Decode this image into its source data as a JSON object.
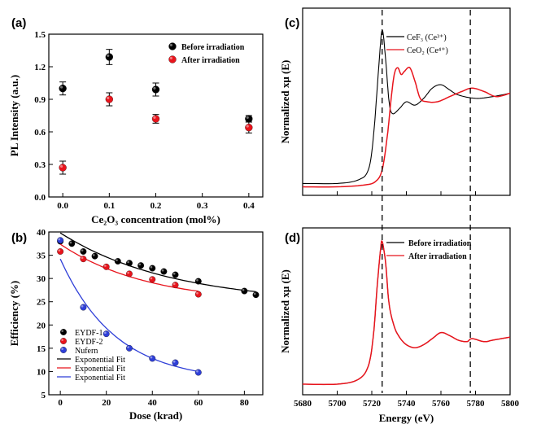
{
  "chart_data": [
    {
      "panel": "(a)",
      "type": "scatter",
      "xlabel": "Ce₂O₃ concentration (mol%)",
      "ylabel": "PL Intensity (a.u.)",
      "xlim": [
        -0.03,
        0.43
      ],
      "ylim": [
        0.0,
        1.5
      ],
      "xticks": [
        "0.0",
        "0.1",
        "0.2",
        "0.3",
        "0.4"
      ],
      "yticks": [
        "0.0",
        "0.3",
        "0.6",
        "0.9",
        "1.2",
        "1.5"
      ],
      "legend_position": "top-right",
      "series": [
        {
          "name": "Before irradiation",
          "color": "#000000",
          "x": [
            0,
            0.1,
            0.2,
            0.4
          ],
          "y": [
            1.0,
            1.29,
            0.99,
            0.72
          ],
          "err": [
            0.06,
            0.07,
            0.06,
            0.03
          ]
        },
        {
          "name": "After irradiation",
          "color": "#e8141c",
          "x": [
            0,
            0.1,
            0.2,
            0.4
          ],
          "y": [
            0.27,
            0.9,
            0.72,
            0.64
          ],
          "err": [
            0.06,
            0.06,
            0.04,
            0.05
          ]
        }
      ]
    },
    {
      "panel": "(b)",
      "type": "scatter",
      "xlabel": "Dose (krad)",
      "ylabel": "Efficiency (%)",
      "xlim": [
        -5,
        88
      ],
      "ylim": [
        5,
        40
      ],
      "xticks": [
        "0",
        "20",
        "40",
        "60",
        "80"
      ],
      "yticks": [
        "5",
        "10",
        "15",
        "20",
        "25",
        "30",
        "35",
        "40"
      ],
      "legend_position": "bottom-left",
      "series": [
        {
          "name": "EYDF-1",
          "color": "#000000",
          "x": [
            0,
            5,
            10,
            15,
            25,
            30,
            35,
            40,
            45,
            50,
            60,
            80,
            85
          ],
          "y": [
            38,
            37.5,
            35.8,
            34.8,
            33.7,
            33.3,
            32.8,
            32.2,
            31.5,
            30.8,
            29.4,
            27.3,
            26.5
          ]
        },
        {
          "name": "EYDF-2",
          "color": "#e8141c",
          "x": [
            0,
            10,
            20,
            30,
            40,
            50,
            60
          ],
          "y": [
            35.8,
            34.2,
            32.5,
            31,
            29.8,
            28.6,
            26.6
          ]
        },
        {
          "name": "Nufern",
          "color": "#2f3fd8",
          "x": [
            0,
            10,
            20,
            30,
            40,
            50,
            60
          ],
          "y": [
            38.2,
            23.8,
            18.1,
            15,
            12.8,
            11.9,
            9.8
          ]
        }
      ],
      "fits": [
        {
          "name": "Exponential Fit",
          "color": "#000000"
        },
        {
          "name": "Exponential Fit",
          "color": "#e8141c"
        },
        {
          "name": "Exponential Fit",
          "color": "#2f3fd8"
        }
      ]
    },
    {
      "panel": "(c)",
      "type": "line",
      "ylabel": "Normalized xμ (E)",
      "xlim": [
        5680,
        5800
      ],
      "legend_position": "top-right",
      "series": [
        {
          "name": "CeF₃ (Ce³⁺)",
          "color": "#000000",
          "x": [
            5680,
            5700,
            5712,
            5718,
            5721,
            5724,
            5726,
            5728,
            5730,
            5732,
            5736,
            5740,
            5745,
            5750,
            5755,
            5760,
            5765,
            5770,
            5780,
            5790,
            5800
          ],
          "y": [
            0.02,
            0.02,
            0.04,
            0.1,
            0.3,
            0.7,
            0.92,
            0.75,
            0.5,
            0.43,
            0.46,
            0.5,
            0.48,
            0.52,
            0.58,
            0.6,
            0.57,
            0.54,
            0.52,
            0.53,
            0.55
          ]
        },
        {
          "name": "CeO₂ (Ce⁴⁺)",
          "color": "#e8141c",
          "x": [
            5680,
            5700,
            5715,
            5722,
            5726,
            5729,
            5731,
            5733,
            5735,
            5737,
            5739,
            5742,
            5745,
            5748,
            5752,
            5758,
            5765,
            5772,
            5778,
            5785,
            5792,
            5800
          ],
          "y": [
            0.0,
            0.0,
            0.01,
            0.03,
            0.1,
            0.3,
            0.5,
            0.66,
            0.7,
            0.66,
            0.68,
            0.7,
            0.62,
            0.52,
            0.5,
            0.5,
            0.53,
            0.56,
            0.58,
            0.56,
            0.53,
            0.55
          ]
        }
      ],
      "vlines": [
        5726,
        5777
      ]
    },
    {
      "panel": "(d)",
      "type": "line",
      "xlabel": "Energy (eV)",
      "ylabel": "Normalized xμ (E)",
      "xlim": [
        5680,
        5800
      ],
      "xticks": [
        "5680",
        "5700",
        "5720",
        "5740",
        "5760",
        "5780",
        "5800"
      ],
      "legend_position": "top-right",
      "series": [
        {
          "name": "Before irradiation",
          "color": "#000000",
          "x": [
            5680,
            5700,
            5712,
            5718,
            5721,
            5723,
            5725,
            5726,
            5728,
            5730,
            5733,
            5736,
            5740,
            5745,
            5750,
            5755,
            5760,
            5765,
            5770,
            5775,
            5778,
            5785,
            5790,
            5800
          ],
          "y": [
            0.02,
            0.02,
            0.05,
            0.14,
            0.35,
            0.65,
            0.9,
            0.96,
            0.82,
            0.55,
            0.4,
            0.33,
            0.28,
            0.26,
            0.28,
            0.32,
            0.36,
            0.34,
            0.31,
            0.3,
            0.32,
            0.3,
            0.31,
            0.33
          ]
        },
        {
          "name": "After irradiation",
          "color": "#e8141c",
          "x": [
            5680,
            5700,
            5712,
            5718,
            5721,
            5723,
            5725,
            5726,
            5728,
            5730,
            5733,
            5736,
            5740,
            5745,
            5750,
            5755,
            5760,
            5765,
            5770,
            5775,
            5778,
            5785,
            5790,
            5800
          ],
          "y": [
            0.02,
            0.02,
            0.05,
            0.14,
            0.35,
            0.65,
            0.9,
            0.96,
            0.82,
            0.55,
            0.4,
            0.33,
            0.28,
            0.26,
            0.28,
            0.32,
            0.36,
            0.34,
            0.31,
            0.3,
            0.32,
            0.3,
            0.31,
            0.33
          ]
        }
      ],
      "vlines": [
        5726,
        5777
      ]
    }
  ]
}
